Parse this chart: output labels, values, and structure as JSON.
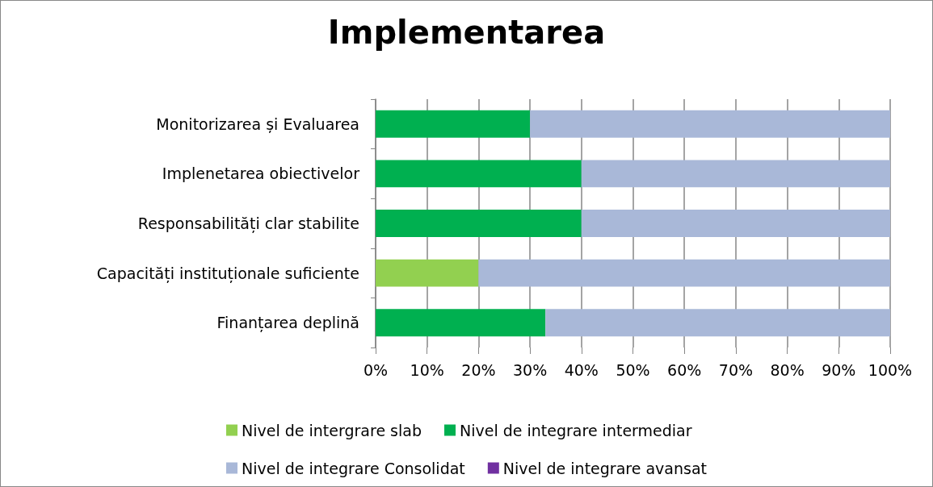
{
  "chart_data": {
    "type": "bar",
    "title": "Implementarea",
    "orientation": "horizontal",
    "stacked": true,
    "categories": [
      "Monitorizarea și Evaluarea",
      "Implenetarea obiectivelor",
      "Responsabilități clar stabilite",
      "Capacități instituționale suficiente",
      "Finanțarea deplină"
    ],
    "series": [
      {
        "name": "Nivel de intergrare slab",
        "color": "#92d050",
        "values": [
          null,
          null,
          null,
          20,
          null
        ]
      },
      {
        "name": "Nivel de integrare intermediar",
        "color": "#00b050",
        "values": [
          30,
          40,
          40,
          null,
          33
        ]
      },
      {
        "name": "Nivel de integrare Consolidat",
        "color": "#a9b8d8",
        "values": [
          70,
          60,
          60,
          80,
          67
        ]
      },
      {
        "name": "Nivel de integrare avansat",
        "color": "#7030a0",
        "values": [
          null,
          null,
          null,
          null,
          null
        ]
      }
    ],
    "xlim": [
      0,
      100
    ],
    "xticks": [
      {
        "value": 0,
        "label": "0%"
      },
      {
        "value": 10,
        "label": "10%"
      },
      {
        "value": 20,
        "label": "20%"
      },
      {
        "value": 30,
        "label": "30%"
      },
      {
        "value": 40,
        "label": "40%"
      },
      {
        "value": 50,
        "label": "50%"
      },
      {
        "value": 60,
        "label": "60%"
      },
      {
        "value": 70,
        "label": "70%"
      },
      {
        "value": 80,
        "label": "80%"
      },
      {
        "value": 90,
        "label": "90%"
      },
      {
        "value": 100,
        "label": "100%"
      }
    ],
    "grid": "x",
    "legend": "bottom"
  }
}
